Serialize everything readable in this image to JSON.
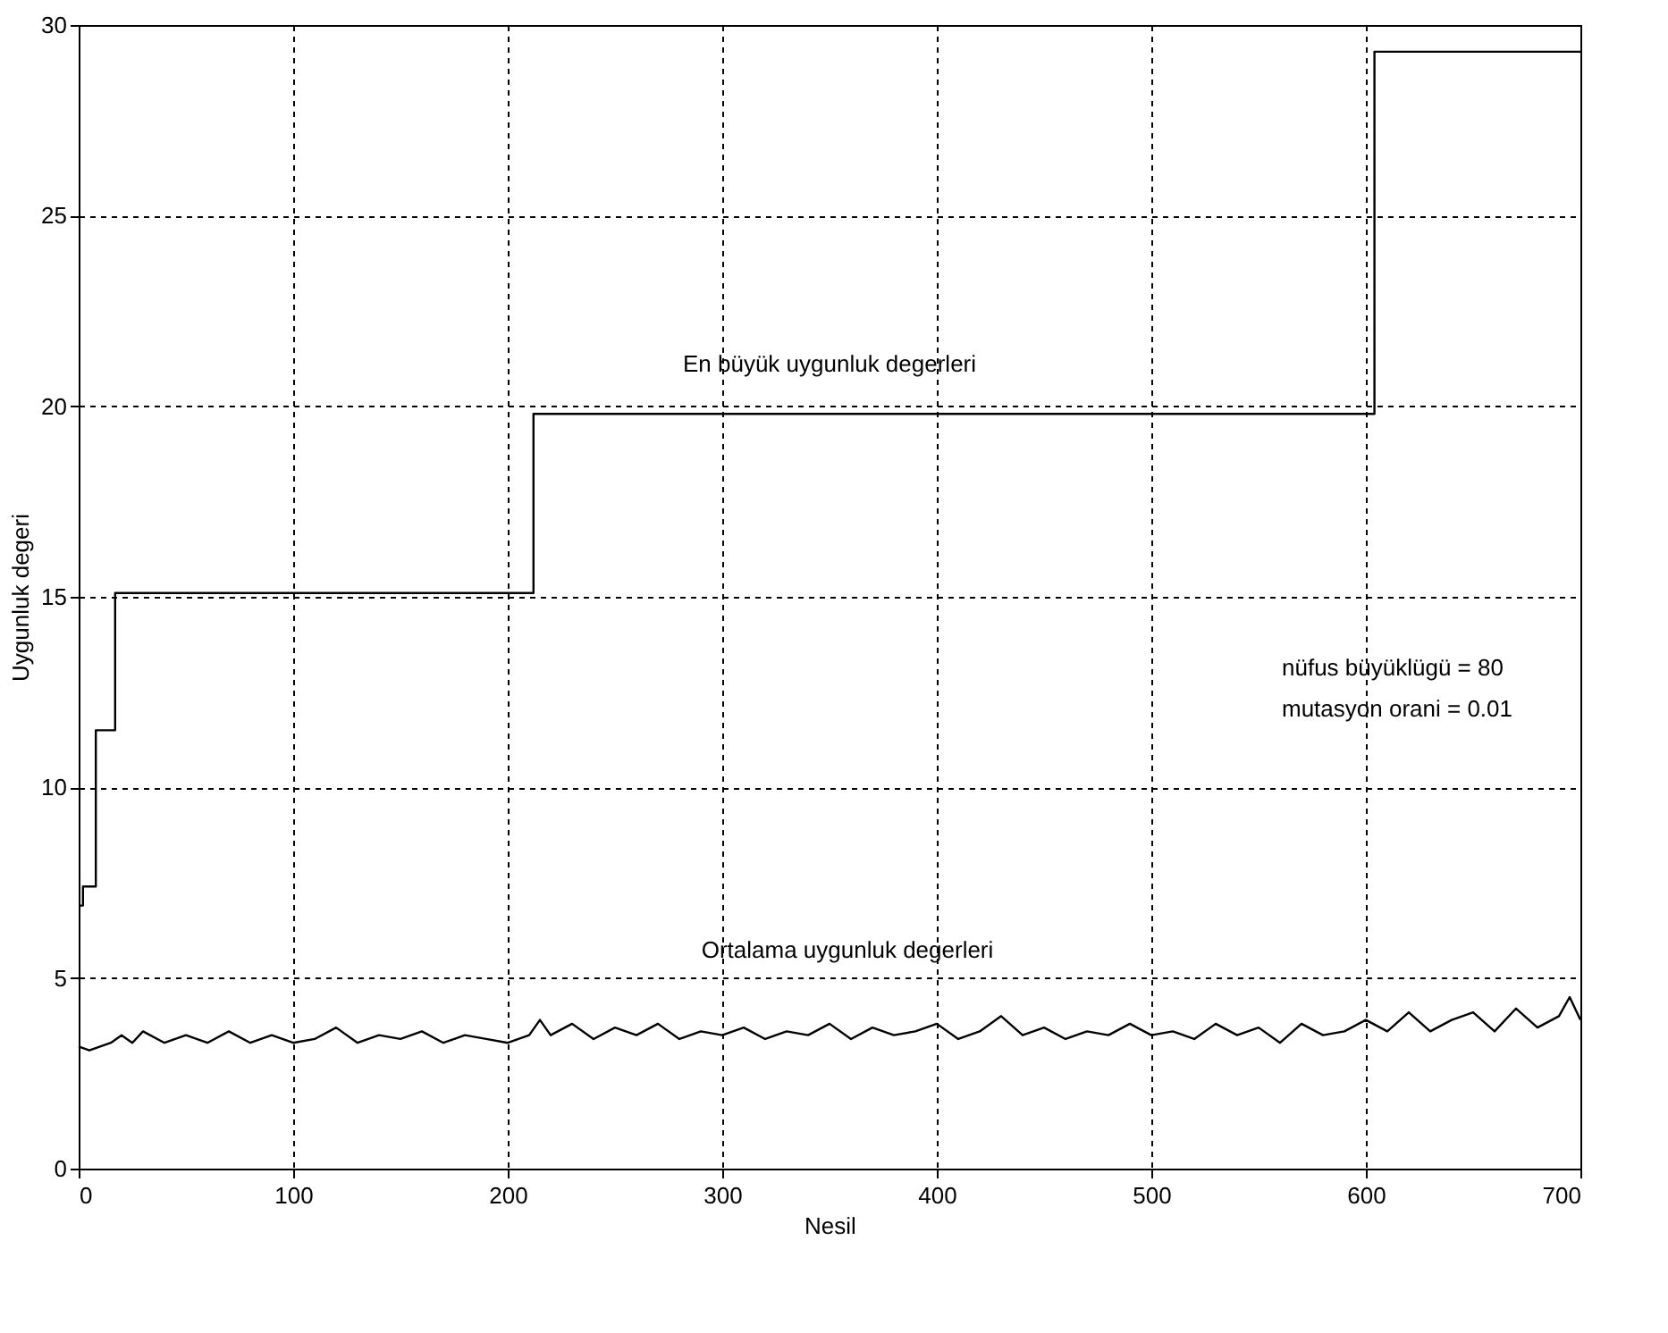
{
  "chart_data": {
    "type": "line",
    "xlabel": "Nesil",
    "ylabel": "Uygunluk degeri",
    "xlim": [
      0,
      700
    ],
    "ylim": [
      0,
      30
    ],
    "xticks": [
      0,
      100,
      200,
      300,
      400,
      500,
      600,
      700
    ],
    "yticks": [
      0,
      5,
      10,
      15,
      20,
      25,
      30
    ],
    "grid": true,
    "line_style": "solid",
    "marker": "none",
    "series": [
      {
        "type": "step",
        "color": "#000000",
        "x": [
          0,
          2,
          8,
          17,
          212,
          604,
          700
        ],
        "values": [
          6.9,
          7.4,
          11.5,
          15.1,
          19.8,
          29.3,
          29.3
        ]
      },
      {
        "color": "#000000",
        "x": [
          0,
          5,
          10,
          15,
          20,
          25,
          30,
          40,
          50,
          60,
          70,
          80,
          90,
          100,
          110,
          120,
          130,
          140,
          150,
          160,
          170,
          180,
          190,
          200,
          210,
          215,
          220,
          230,
          240,
          250,
          260,
          270,
          280,
          290,
          300,
          310,
          320,
          330,
          340,
          350,
          360,
          370,
          380,
          390,
          400,
          410,
          420,
          430,
          440,
          450,
          460,
          470,
          480,
          490,
          500,
          510,
          520,
          530,
          540,
          550,
          560,
          570,
          580,
          590,
          600,
          610,
          620,
          630,
          640,
          650,
          660,
          670,
          680,
          690,
          695,
          700
        ],
        "values": [
          3.2,
          3.1,
          3.2,
          3.3,
          3.5,
          3.3,
          3.6,
          3.3,
          3.5,
          3.3,
          3.6,
          3.3,
          3.5,
          3.3,
          3.4,
          3.7,
          3.3,
          3.5,
          3.4,
          3.6,
          3.3,
          3.5,
          3.4,
          3.3,
          3.5,
          3.9,
          3.5,
          3.8,
          3.4,
          3.7,
          3.5,
          3.8,
          3.4,
          3.6,
          3.5,
          3.7,
          3.4,
          3.6,
          3.5,
          3.8,
          3.4,
          3.7,
          3.5,
          3.6,
          3.8,
          3.4,
          3.6,
          4.0,
          3.5,
          3.7,
          3.4,
          3.6,
          3.5,
          3.8,
          3.5,
          3.6,
          3.4,
          3.8,
          3.5,
          3.7,
          3.3,
          3.8,
          3.5,
          3.6,
          3.9,
          3.6,
          4.1,
          3.6,
          3.9,
          4.1,
          3.6,
          4.2,
          3.7,
          4.0,
          4.5,
          3.9
        ]
      }
    ],
    "annotations": [
      "En büyük uygunluk degerleri",
      "Ortalama uygunluk degerleri",
      "nüfus büyüklügü = 80",
      "mutasyon orani = 0.01"
    ]
  }
}
